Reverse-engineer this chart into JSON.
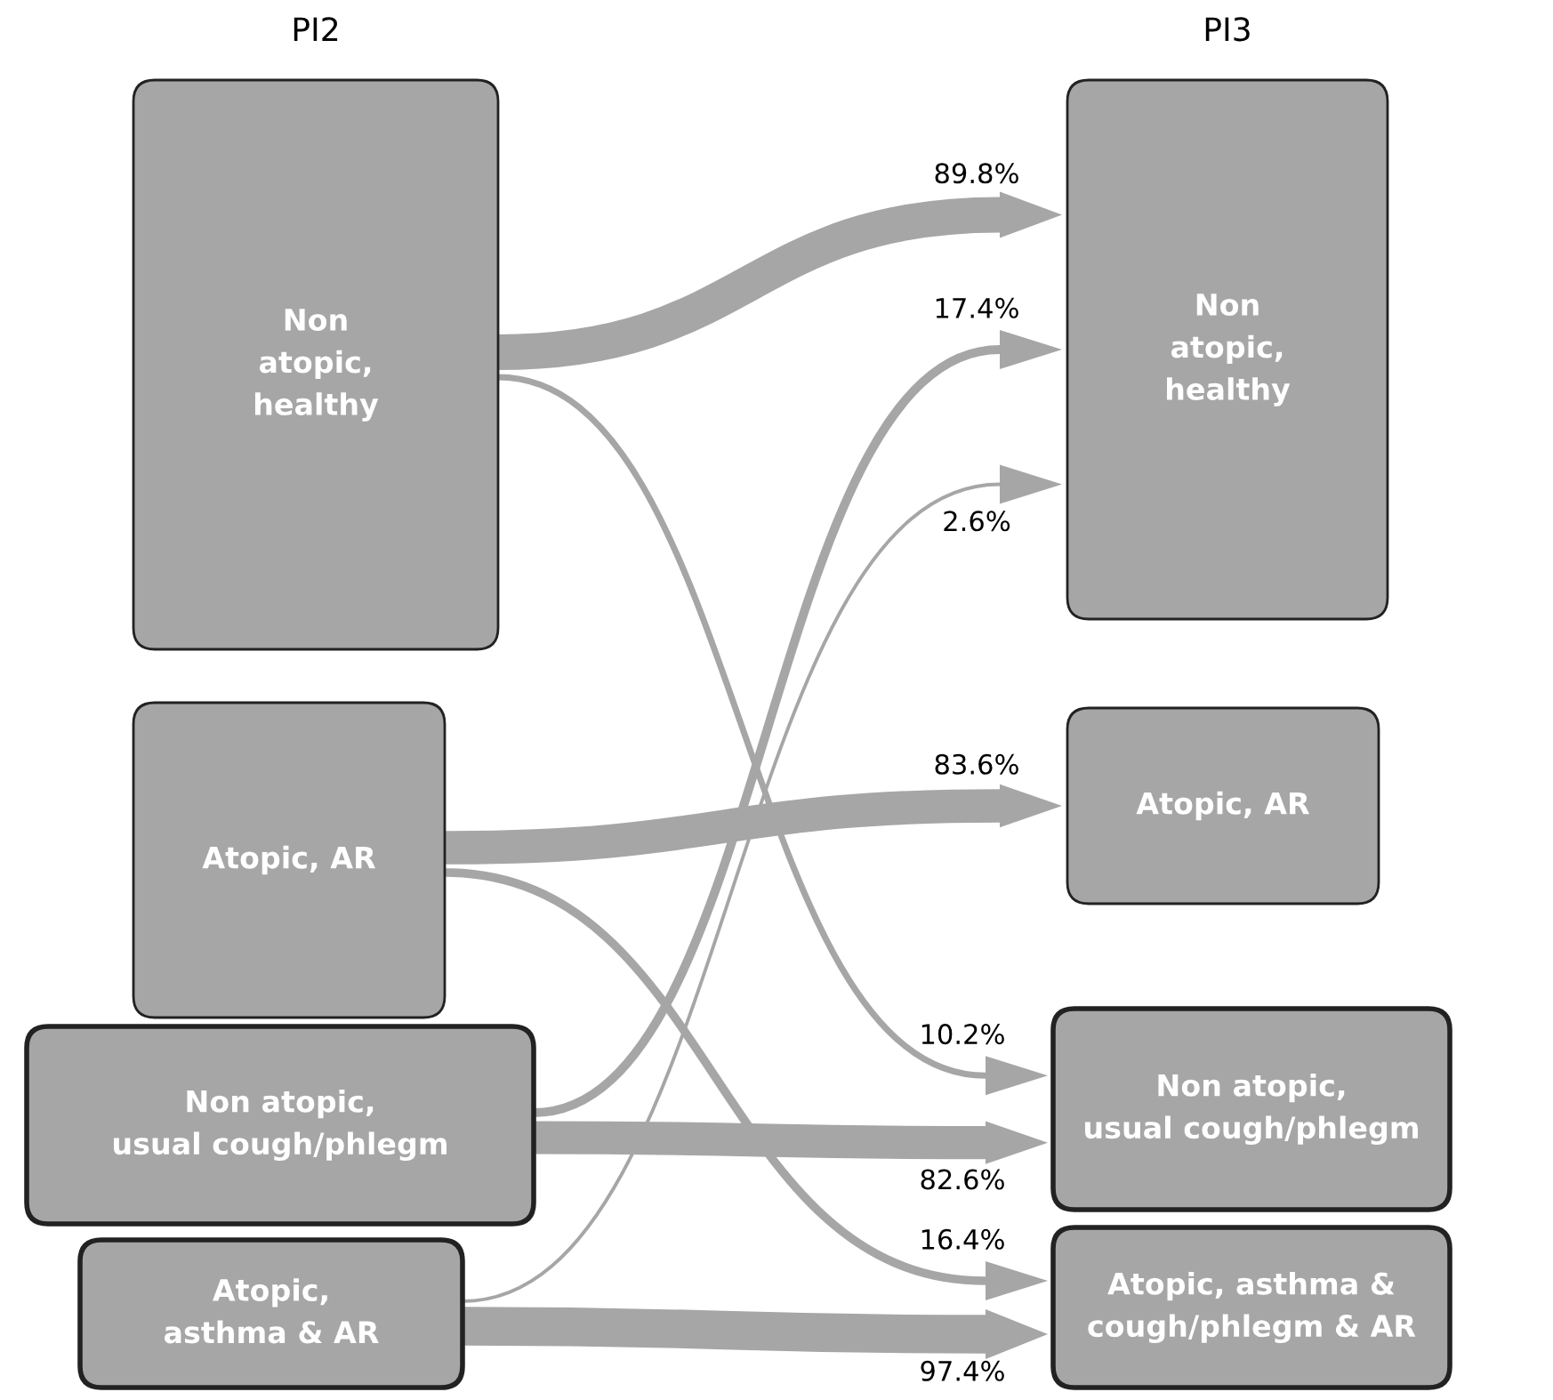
{
  "chart_data": {
    "type": "other",
    "categories": [
      "Non\natopic,\nhealthy",
      "Atopic, AR",
      "Non atopic,\nusual cough/phlegm",
      "Atopic, asthma &\ncough/phlegm & AR"
    ],
    "series": [
      {
        "name": "Non\natopic,\nhealthy",
        "values": [
          89.8,
          null,
          10.2,
          null
        ],
        "value_labels": [
          "89.8%",
          null,
          "10.2%",
          null
        ]
      },
      {
        "name": "Atopic, AR",
        "values": [
          null,
          83.6,
          null,
          16.4
        ],
        "value_labels": [
          null,
          "83.6%",
          null,
          "16.4%"
        ]
      },
      {
        "name": "Non atopic,\nusual cough/phlegm",
        "values": [
          17.4,
          null,
          82.6,
          null
        ],
        "value_labels": [
          "17.4%",
          null,
          "82.6%",
          null
        ]
      },
      {
        "name": "Atopic,\nasthma & AR",
        "values": [
          2.6,
          null,
          null,
          97.4
        ],
        "value_labels": [
          "2.6%",
          null,
          null,
          "97.4%"
        ]
      }
    ],
    "annotations": [
      "PI2",
      "PI3"
    ]
  }
}
